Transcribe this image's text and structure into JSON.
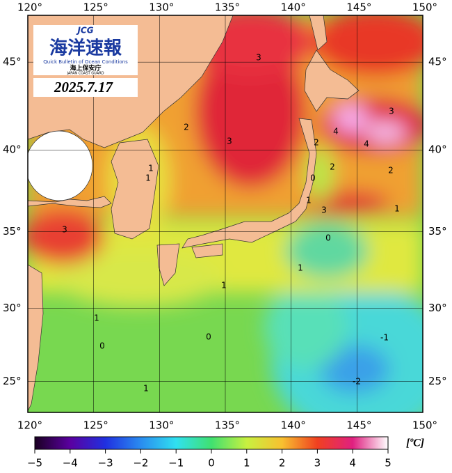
{
  "map": {
    "logo": {
      "abbr": "JCG",
      "title": "海洋速報",
      "subtitle": "Quick Bulletin of Ocean Conditions",
      "agency": "海上保安庁",
      "agency_en": "JAPAN COAST GUARD"
    },
    "date": "2025.7.17",
    "xlim": [
      120,
      150
    ],
    "ylim": [
      22.8,
      47.5
    ],
    "xticks": [
      {
        "value": 120,
        "label": "120°"
      },
      {
        "value": 125,
        "label": "125°"
      },
      {
        "value": 130,
        "label": "130°"
      },
      {
        "value": 135,
        "label": "135°"
      },
      {
        "value": 140,
        "label": "140°"
      },
      {
        "value": 145,
        "label": "145°"
      },
      {
        "value": 150,
        "label": "150°"
      }
    ],
    "yticks": [
      {
        "value": 25,
        "label": "25°"
      },
      {
        "value": 30,
        "label": "30°"
      },
      {
        "value": 35,
        "label": "35°"
      },
      {
        "value": 40,
        "label": "40°"
      },
      {
        "value": 45,
        "label": "45°"
      }
    ],
    "contour_labels": [
      "3",
      "2",
      "3",
      "1",
      "1",
      "3",
      "2",
      "4",
      "4",
      "3",
      "2",
      "0",
      "2",
      "1",
      "3",
      "1",
      "0",
      "1",
      "1",
      "1",
      "0",
      "0",
      "-1",
      "1",
      "-2"
    ],
    "colorbar": {
      "range": [
        -5,
        5
      ],
      "ticks": [
        {
          "value": -5,
          "label": "−5"
        },
        {
          "value": -4,
          "label": "−4"
        },
        {
          "value": -3,
          "label": "−3"
        },
        {
          "value": -2,
          "label": "−2"
        },
        {
          "value": -1,
          "label": "−1"
        },
        0,
        1,
        2,
        3,
        4,
        5
      ],
      "unit": "[ºC]",
      "colors": [
        "#1a0022",
        "#5a00a0",
        "#2030e0",
        "#2a8cf0",
        "#30e0f0",
        "#40e070",
        "#c8f040",
        "#f8c030",
        "#f04020",
        "#e02080",
        "#ffffff"
      ]
    }
  }
}
